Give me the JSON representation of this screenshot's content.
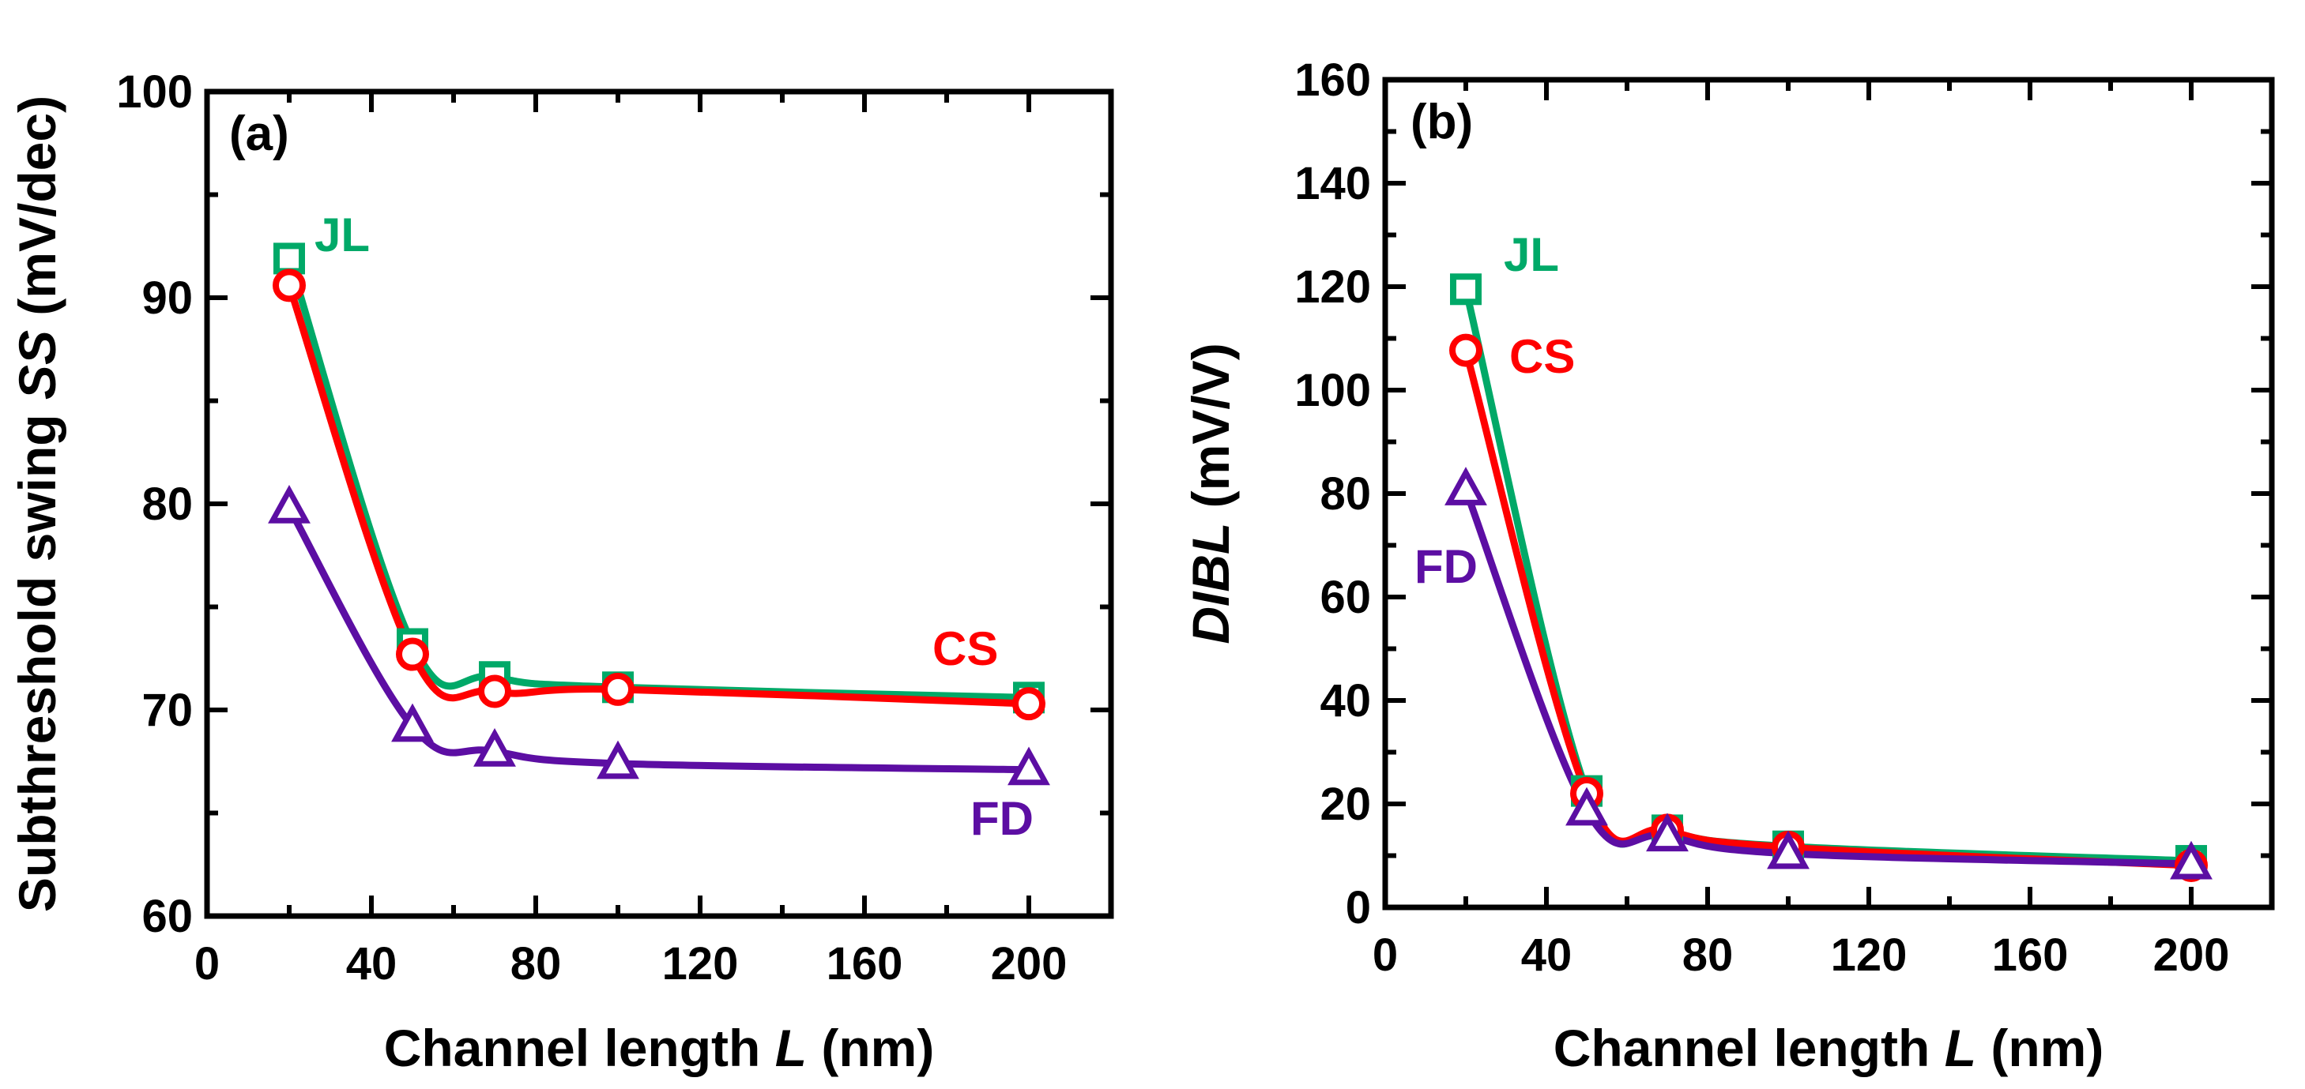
{
  "colors": {
    "JL": "#00a968",
    "CS": "#ff0000",
    "FD": "#5c0ea3",
    "axis": "#000000"
  },
  "chart_data": [
    {
      "type": "line",
      "panel_label": "(a)",
      "xlabel_prefix": "Channel length ",
      "xlabel_var": "L",
      "xlabel_suffix": " (nm)",
      "ylabel_prefix": "Subthreshold swing ",
      "ylabel_var": "SS",
      "ylabel_suffix": " (mV/dec)",
      "xlim": [
        0,
        220
      ],
      "ylim": [
        60,
        100
      ],
      "xticks": [
        0,
        40,
        80,
        120,
        160,
        200
      ],
      "yticks": [
        60,
        70,
        80,
        90,
        100
      ],
      "x": [
        20,
        50,
        70,
        100,
        200
      ],
      "series": [
        {
          "name": "JL",
          "marker": "square",
          "values": [
            91.9,
            73.2,
            71.6,
            71.1,
            70.6
          ]
        },
        {
          "name": "CS",
          "marker": "circle",
          "values": [
            90.6,
            72.7,
            70.9,
            71.0,
            70.3
          ]
        },
        {
          "name": "FD",
          "marker": "triangle",
          "values": [
            79.8,
            69.2,
            68.0,
            67.4,
            67.1
          ]
        }
      ],
      "annotations": [
        "JL",
        "CS",
        "FD"
      ],
      "grid": false
    },
    {
      "type": "line",
      "panel_label": "(b)",
      "xlabel_prefix": "Channel length ",
      "xlabel_var": "L",
      "xlabel_suffix": " (nm)",
      "ylabel_prefix": "",
      "ylabel_var": "DIBL",
      "ylabel_suffix": " (mV/V)",
      "xlim": [
        0,
        220
      ],
      "ylim": [
        0,
        160
      ],
      "xticks": [
        0,
        40,
        80,
        120,
        160,
        200
      ],
      "yticks": [
        0,
        20,
        40,
        60,
        80,
        100,
        120,
        140,
        160
      ],
      "x": [
        20,
        50,
        70,
        100,
        200
      ],
      "series": [
        {
          "name": "JL",
          "marker": "square",
          "values": [
            119.5,
            22.5,
            14.9,
            11.8,
            9.0
          ]
        },
        {
          "name": "CS",
          "marker": "circle",
          "values": [
            107.7,
            22.0,
            14.9,
            11.6,
            8.1
          ]
        },
        {
          "name": "FD",
          "marker": "triangle",
          "values": [
            80.7,
            18.8,
            13.8,
            10.4,
            8.4
          ]
        }
      ],
      "annotations": [
        "JL",
        "CS",
        "FD"
      ],
      "grid": false
    }
  ]
}
